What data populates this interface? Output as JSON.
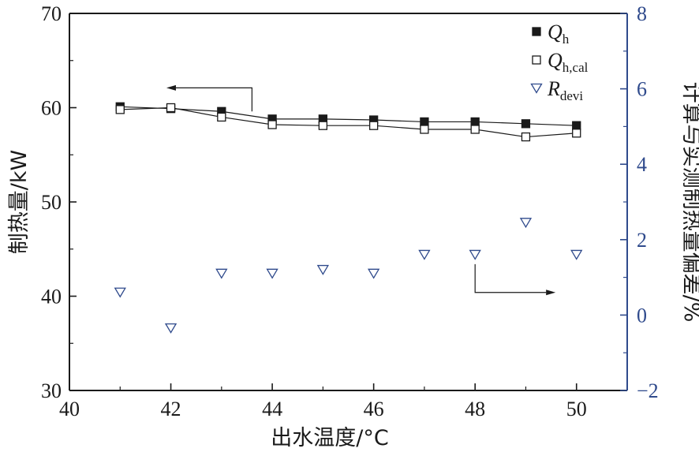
{
  "chart_data": {
    "type": "scatter",
    "xlabel": "出水温度/°C",
    "ylabel_left": "制热量/kW",
    "ylabel_right": "计算与实测制热量偏差/%",
    "x_ticks": [
      "40",
      "42",
      "44",
      "46",
      "48",
      "50"
    ],
    "y_left_ticks": [
      "30",
      "40",
      "50",
      "60",
      "70"
    ],
    "y_right_ticks": [
      "−2",
      "0",
      "2",
      "4",
      "6",
      "8"
    ],
    "xlim": [
      40,
      51
    ],
    "ylim_left": [
      30,
      70
    ],
    "ylim_right": [
      -2,
      8
    ],
    "grid": false,
    "legend_position": "top-right",
    "x": [
      41,
      42,
      43,
      44,
      45,
      46,
      47,
      48,
      49,
      50
    ],
    "series": [
      {
        "name": "Q",
        "name_sub": "h",
        "axis": "left",
        "marker": "filled-square",
        "values": [
          60.1,
          59.9,
          59.6,
          58.8,
          58.8,
          58.7,
          58.5,
          58.5,
          58.3,
          58.1
        ]
      },
      {
        "name": "Q",
        "name_sub": "h,cal",
        "axis": "left",
        "marker": "open-square",
        "values": [
          59.8,
          60.0,
          59.0,
          58.2,
          58.1,
          58.1,
          57.7,
          57.7,
          56.9,
          57.3
        ]
      },
      {
        "name": "R",
        "name_sub": "devi",
        "axis": "right",
        "marker": "open-triangle-down",
        "values": [
          0.6,
          -0.35,
          1.1,
          1.1,
          1.2,
          1.1,
          1.6,
          1.6,
          2.45,
          1.6
        ]
      }
    ]
  },
  "colors": {
    "axis_left": "#1a1a1a",
    "axis_right": "#2f4a8c",
    "marker_q": "#1a1a1a",
    "marker_r": "#2f4a8c"
  }
}
